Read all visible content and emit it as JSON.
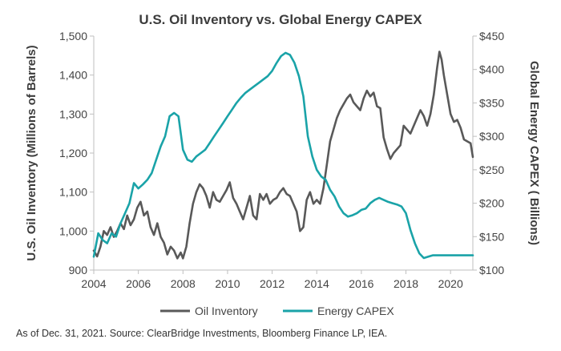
{
  "chart_data": {
    "type": "line",
    "title": "U.S. Oil Inventory vs. Global Energy CAPEX",
    "xlabel": "",
    "ylabel": "U.S. Oil Inventory (Millions of Barrels)",
    "y2label": "Global Energy CAPEX ( Billions)",
    "xlim": [
      2004,
      2021
    ],
    "ylim": [
      900,
      1500
    ],
    "y2lim": [
      100,
      450
    ],
    "x_ticks": [
      2004,
      2006,
      2008,
      2010,
      2012,
      2014,
      2016,
      2018,
      2020
    ],
    "x_tick_labels": [
      "2004",
      "2006",
      "2008",
      "2010",
      "2012",
      "2014",
      "2016",
      "2018",
      "2020"
    ],
    "y_ticks": [
      900,
      1000,
      1100,
      1200,
      1300,
      1400,
      1500
    ],
    "y_tick_labels": [
      "900",
      "1,000",
      "1,100",
      "1,200",
      "1,300",
      "1,400",
      "1,500"
    ],
    "y2_ticks": [
      100,
      150,
      200,
      250,
      300,
      350,
      400,
      450
    ],
    "y2_tick_labels": [
      "$100",
      "$150",
      "$200",
      "$250",
      "$300",
      "$350",
      "$400",
      "$450"
    ],
    "grid": false,
    "legend_position": "bottom",
    "series": [
      {
        "name": "Oil Inventory",
        "axis": "left",
        "color": "#595959",
        "x": [
          2004.0,
          2004.15,
          2004.3,
          2004.45,
          2004.6,
          2004.75,
          2004.9,
          2005.05,
          2005.2,
          2005.35,
          2005.5,
          2005.65,
          2005.8,
          2005.95,
          2006.1,
          2006.25,
          2006.4,
          2006.55,
          2006.7,
          2006.85,
          2007.0,
          2007.15,
          2007.3,
          2007.45,
          2007.6,
          2007.75,
          2007.9,
          2008.0,
          2008.15,
          2008.3,
          2008.45,
          2008.6,
          2008.75,
          2008.9,
          2009.05,
          2009.2,
          2009.35,
          2009.5,
          2009.65,
          2009.8,
          2009.95,
          2010.1,
          2010.25,
          2010.4,
          2010.55,
          2010.7,
          2010.85,
          2011.0,
          2011.15,
          2011.3,
          2011.45,
          2011.6,
          2011.75,
          2011.9,
          2012.05,
          2012.2,
          2012.35,
          2012.5,
          2012.65,
          2012.8,
          2012.95,
          2013.1,
          2013.25,
          2013.4,
          2013.55,
          2013.7,
          2013.85,
          2014.0,
          2014.15,
          2014.3,
          2014.45,
          2014.6,
          2014.75,
          2014.9,
          2015.05,
          2015.2,
          2015.35,
          2015.5,
          2015.65,
          2015.8,
          2015.95,
          2016.1,
          2016.25,
          2016.4,
          2016.55,
          2016.7,
          2016.85,
          2017.0,
          2017.15,
          2017.3,
          2017.45,
          2017.6,
          2017.75,
          2017.9,
          2018.05,
          2018.2,
          2018.35,
          2018.5,
          2018.65,
          2018.8,
          2018.95,
          2019.1,
          2019.25,
          2019.4,
          2019.5,
          2019.6,
          2019.7,
          2019.85,
          2020.0,
          2020.15,
          2020.3,
          2020.45,
          2020.6,
          2020.75,
          2020.9,
          2021.0
        ],
        "values": [
          950,
          935,
          960,
          1000,
          990,
          1010,
          985,
          1000,
          1020,
          1005,
          1040,
          1015,
          1030,
          1060,
          1075,
          1040,
          1050,
          1010,
          990,
          1020,
          985,
          970,
          940,
          960,
          950,
          930,
          945,
          930,
          960,
          1020,
          1070,
          1100,
          1120,
          1110,
          1090,
          1060,
          1100,
          1080,
          1075,
          1090,
          1105,
          1125,
          1085,
          1070,
          1050,
          1030,
          1060,
          1090,
          1040,
          1030,
          1095,
          1080,
          1095,
          1070,
          1080,
          1085,
          1100,
          1110,
          1095,
          1090,
          1070,
          1050,
          1000,
          1010,
          1080,
          1100,
          1070,
          1080,
          1070,
          1110,
          1170,
          1230,
          1260,
          1290,
          1310,
          1325,
          1340,
          1350,
          1330,
          1320,
          1310,
          1340,
          1360,
          1345,
          1355,
          1320,
          1315,
          1240,
          1210,
          1185,
          1200,
          1210,
          1220,
          1270,
          1260,
          1250,
          1270,
          1290,
          1310,
          1295,
          1270,
          1300,
          1350,
          1420,
          1460,
          1440,
          1400,
          1350,
          1300,
          1280,
          1285,
          1265,
          1235,
          1230,
          1225,
          1190
        ]
      },
      {
        "name": "Energy CAPEX",
        "axis": "right",
        "color": "#1aa3a8",
        "x": [
          2004.0,
          2004.2,
          2004.4,
          2004.6,
          2004.8,
          2005.0,
          2005.2,
          2005.4,
          2005.6,
          2005.8,
          2006.0,
          2006.2,
          2006.4,
          2006.6,
          2006.8,
          2007.0,
          2007.2,
          2007.4,
          2007.6,
          2007.8,
          2008.0,
          2008.2,
          2008.4,
          2008.6,
          2008.8,
          2009.0,
          2009.2,
          2009.4,
          2009.6,
          2009.8,
          2010.0,
          2010.2,
          2010.4,
          2010.6,
          2010.8,
          2011.0,
          2011.2,
          2011.4,
          2011.6,
          2011.8,
          2012.0,
          2012.2,
          2012.4,
          2012.6,
          2012.8,
          2013.0,
          2013.2,
          2013.4,
          2013.6,
          2013.8,
          2014.0,
          2014.2,
          2014.4,
          2014.6,
          2014.8,
          2015.0,
          2015.2,
          2015.4,
          2015.6,
          2015.8,
          2016.0,
          2016.2,
          2016.4,
          2016.6,
          2016.8,
          2017.0,
          2017.2,
          2017.4,
          2017.6,
          2017.8,
          2018.0,
          2018.2,
          2018.4,
          2018.6,
          2018.8,
          2019.0,
          2019.2,
          2019.4,
          2019.6,
          2019.8,
          2020.0,
          2020.2,
          2020.4,
          2020.6,
          2020.8,
          2021.0
        ],
        "values": [
          120,
          155,
          145,
          140,
          155,
          150,
          170,
          185,
          200,
          230,
          222,
          228,
          235,
          245,
          265,
          285,
          300,
          330,
          335,
          330,
          280,
          265,
          262,
          270,
          275,
          280,
          290,
          300,
          310,
          320,
          330,
          340,
          350,
          358,
          365,
          370,
          375,
          380,
          385,
          390,
          398,
          410,
          420,
          425,
          422,
          410,
          390,
          360,
          300,
          270,
          250,
          240,
          235,
          220,
          210,
          195,
          185,
          180,
          182,
          185,
          190,
          192,
          200,
          205,
          208,
          205,
          202,
          200,
          198,
          195,
          185,
          160,
          140,
          125,
          118,
          120,
          122,
          122,
          122,
          122,
          122,
          122,
          122,
          122,
          122,
          122
        ]
      }
    ]
  },
  "footnote": "As of Dec. 31, 2021. Source: ClearBridge Investments, Bloomberg Finance LP, IEA."
}
